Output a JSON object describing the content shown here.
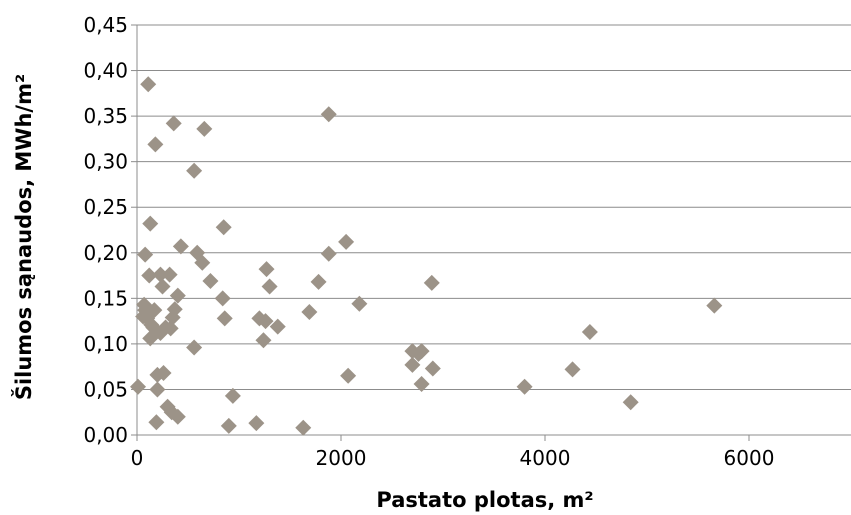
{
  "chart_data": {
    "type": "scatter",
    "title": "",
    "xlabel": "Pastato plotas, m²",
    "ylabel": "Šilumos sąnaudos, MWh/m²",
    "xlim": [
      0,
      7000
    ],
    "ylim": [
      0,
      0.45
    ],
    "x_ticks": [
      "0",
      "2000",
      "4000",
      "6000"
    ],
    "y_ticks": [
      "0,00",
      "0,05",
      "0,10",
      "0,15",
      "0,20",
      "0,25",
      "0,30",
      "0,35",
      "0,40",
      "0,45"
    ],
    "grid": "horizontal",
    "legend": "none",
    "marker": "diamond",
    "colors": {
      "marker": "#9c9388",
      "axis": "#8c8c8c"
    },
    "series": [
      {
        "points": [
          [
            10,
            0.053
          ],
          [
            60,
            0.13
          ],
          [
            70,
            0.143
          ],
          [
            80,
            0.198
          ],
          [
            80,
            0.137
          ],
          [
            100,
            0.128
          ],
          [
            110,
            0.385
          ],
          [
            120,
            0.175
          ],
          [
            130,
            0.232
          ],
          [
            130,
            0.106
          ],
          [
            140,
            0.121
          ],
          [
            160,
            0.118
          ],
          [
            170,
            0.137
          ],
          [
            180,
            0.319
          ],
          [
            190,
            0.014
          ],
          [
            200,
            0.05
          ],
          [
            200,
            0.066
          ],
          [
            230,
            0.176
          ],
          [
            230,
            0.112
          ],
          [
            250,
            0.163
          ],
          [
            260,
            0.068
          ],
          [
            280,
            0.118
          ],
          [
            300,
            0.031
          ],
          [
            320,
            0.176
          ],
          [
            330,
            0.117
          ],
          [
            340,
            0.025
          ],
          [
            350,
            0.129
          ],
          [
            360,
            0.342
          ],
          [
            370,
            0.138
          ],
          [
            400,
            0.02
          ],
          [
            400,
            0.153
          ],
          [
            430,
            0.207
          ],
          [
            560,
            0.29
          ],
          [
            560,
            0.096
          ],
          [
            590,
            0.2
          ],
          [
            640,
            0.189
          ],
          [
            660,
            0.336
          ],
          [
            720,
            0.169
          ],
          [
            840,
            0.15
          ],
          [
            850,
            0.228
          ],
          [
            860,
            0.128
          ],
          [
            900,
            0.01
          ],
          [
            940,
            0.043
          ],
          [
            1170,
            0.013
          ],
          [
            1200,
            0.128
          ],
          [
            1240,
            0.104
          ],
          [
            1260,
            0.125
          ],
          [
            1270,
            0.182
          ],
          [
            1300,
            0.163
          ],
          [
            1380,
            0.119
          ],
          [
            1630,
            0.008
          ],
          [
            1690,
            0.135
          ],
          [
            1780,
            0.168
          ],
          [
            1880,
            0.352
          ],
          [
            1880,
            0.199
          ],
          [
            2050,
            0.212
          ],
          [
            2070,
            0.065
          ],
          [
            2180,
            0.144
          ],
          [
            2700,
            0.077
          ],
          [
            2700,
            0.092
          ],
          [
            2760,
            0.089
          ],
          [
            2790,
            0.092
          ],
          [
            2790,
            0.056
          ],
          [
            2890,
            0.167
          ],
          [
            2900,
            0.073
          ],
          [
            3800,
            0.053
          ],
          [
            4270,
            0.072
          ],
          [
            4440,
            0.113
          ],
          [
            4840,
            0.036
          ],
          [
            5660,
            0.142
          ]
        ]
      }
    ]
  }
}
